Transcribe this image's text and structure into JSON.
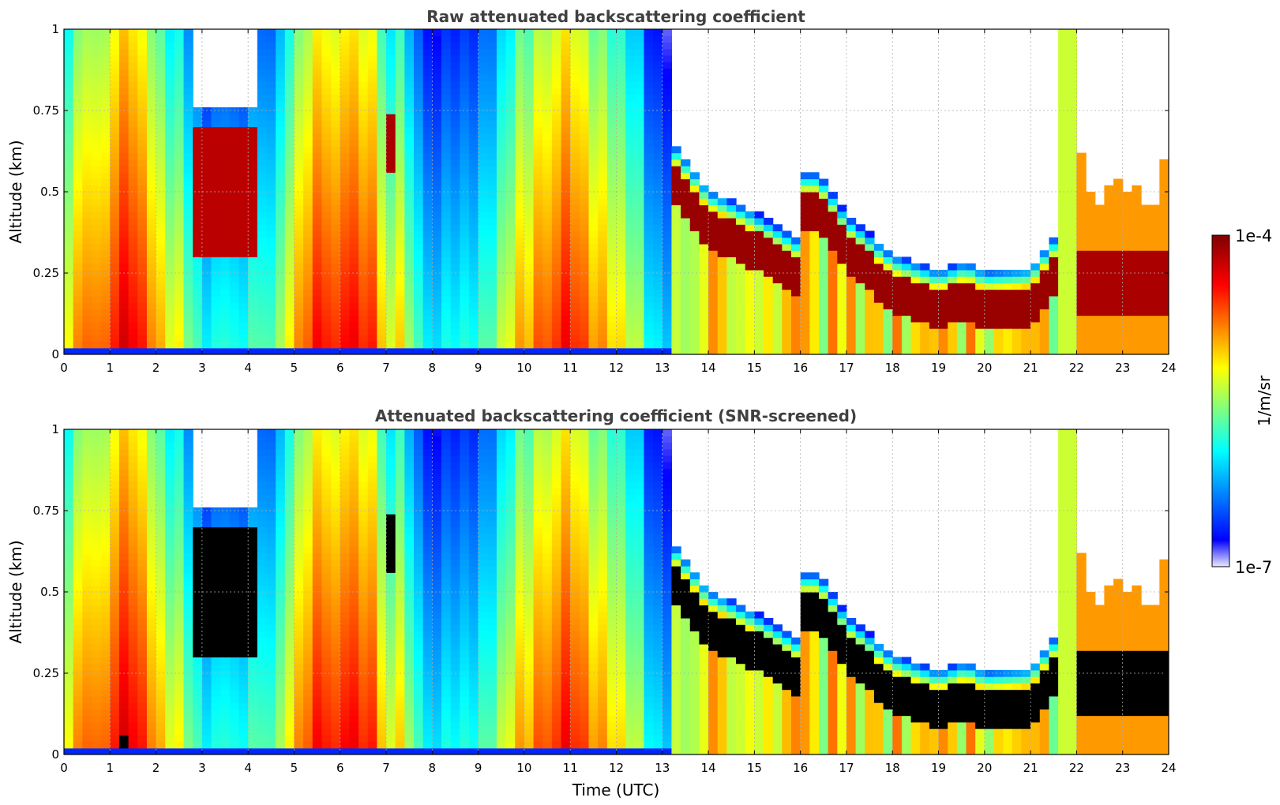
{
  "chart_data": [
    {
      "type": "heatmap",
      "title": "Raw attenuated backscattering coefficient",
      "xlabel": "",
      "ylabel": "Altitude (km)",
      "xlim": [
        0,
        24
      ],
      "ylim": [
        0,
        1
      ],
      "x_ticks": [
        "0",
        "1",
        "2",
        "3",
        "4",
        "5",
        "6",
        "7",
        "8",
        "9",
        "10",
        "11",
        "12",
        "13",
        "14",
        "15",
        "16",
        "17",
        "18",
        "19",
        "20",
        "21",
        "22",
        "23",
        "24"
      ],
      "y_ticks": [
        "0",
        "0.25",
        "0.5",
        "0.75",
        "1"
      ],
      "grid": true,
      "data_note": "",
      "cloud_base_km": [
        {
          "x": 13.2,
          "y": 0.6
        },
        {
          "x": 14,
          "y": 0.45
        },
        {
          "x": 15,
          "y": 0.38
        },
        {
          "x": 15.9,
          "y": 0.3
        },
        {
          "x": 16,
          "y": 0.5
        },
        {
          "x": 16.4,
          "y": 0.5
        },
        {
          "x": 17,
          "y": 0.37
        },
        {
          "x": 18,
          "y": 0.25
        },
        {
          "x": 19,
          "y": 0.2
        },
        {
          "x": 19.6,
          "y": 0.23
        },
        {
          "x": 20,
          "y": 0.2
        },
        {
          "x": 21,
          "y": 0.21
        },
        {
          "x": 21.5,
          "y": 0.3
        }
      ]
    },
    {
      "type": "heatmap",
      "title": "Attenuated backscattering coefficient (SNR-screened)",
      "xlabel": "Time (UTC)",
      "ylabel": "Altitude (km)",
      "xlim": [
        0,
        24
      ],
      "ylim": [
        0,
        1
      ],
      "x_ticks": [
        "0",
        "1",
        "2",
        "3",
        "4",
        "5",
        "6",
        "7",
        "8",
        "9",
        "10",
        "11",
        "12",
        "13",
        "14",
        "15",
        "16",
        "17",
        "18",
        "19",
        "20",
        "21",
        "22",
        "23",
        "24"
      ],
      "y_ticks": [
        "0",
        "0.25",
        "0.5",
        "0.75",
        "1"
      ],
      "grid": true
    }
  ],
  "colorbar": {
    "label": "1/m/sr",
    "max_label": "1e-4",
    "min_label": "1e-7",
    "scale": "log",
    "colormap": "jet",
    "colors": [
      "#ebebff",
      "#0000ff",
      "#00ffff",
      "#ffff00",
      "#ff0000",
      "#800000"
    ]
  }
}
